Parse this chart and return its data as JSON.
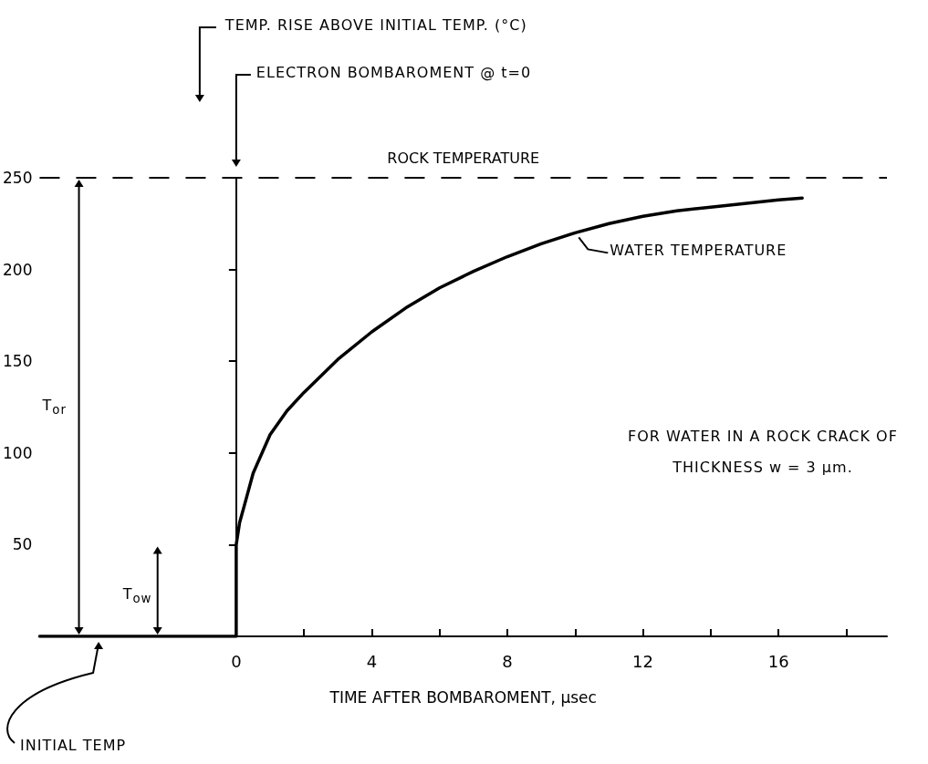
{
  "chart_data": {
    "type": "line",
    "xlabel": "TIME AFTER BOMBAROMENT, µsec",
    "series": [
      {
        "name": "WATER TEMPERATURE",
        "color": "#000000",
        "x": [
          -5.8,
          0,
          0,
          0.1,
          0.25,
          0.5,
          1,
          1.5,
          2,
          3,
          4,
          5,
          6,
          7,
          8,
          9,
          10,
          11,
          12,
          13,
          14,
          15,
          16,
          16.7
        ],
        "values": [
          0,
          0,
          50,
          62,
          72,
          89,
          110,
          123,
          133,
          151,
          166,
          179,
          190,
          199,
          207,
          214,
          220,
          225,
          229,
          232,
          234,
          236,
          238,
          239
        ]
      }
    ],
    "xlim": [
      -5.8,
      19.2
    ],
    "ylim": [
      0,
      250
    ],
    "xticks": [
      0,
      {
        "value": 2,
        "label": null
      },
      4,
      {
        "value": 6,
        "label": null
      },
      8,
      {
        "value": 10,
        "label": null
      },
      12,
      {
        "value": 14,
        "label": null
      },
      16,
      {
        "value": 18,
        "label": null
      }
    ],
    "yticks": [
      {
        "value": 0,
        "label": null
      },
      50,
      100,
      150,
      200,
      250
    ],
    "ref_lines": [
      {
        "axis": "y",
        "value": 250,
        "label": "ROCK TEMPERATURE",
        "line_style": "dashed",
        "color": "#000000"
      }
    ],
    "annotations": [
      "TEMP. RISE ABOVE INITIAL TEMP. (°C)",
      "ELECTRON BOMBAROMENT @ t=0",
      "FOR WATER IN A ROCK CRACK OF THICKNESS w = 3 µm.",
      "INITIAL TEMP",
      "T$_{or}$",
      "T$_{ow}$"
    ],
    "marker": "none",
    "line_style": "solid"
  }
}
